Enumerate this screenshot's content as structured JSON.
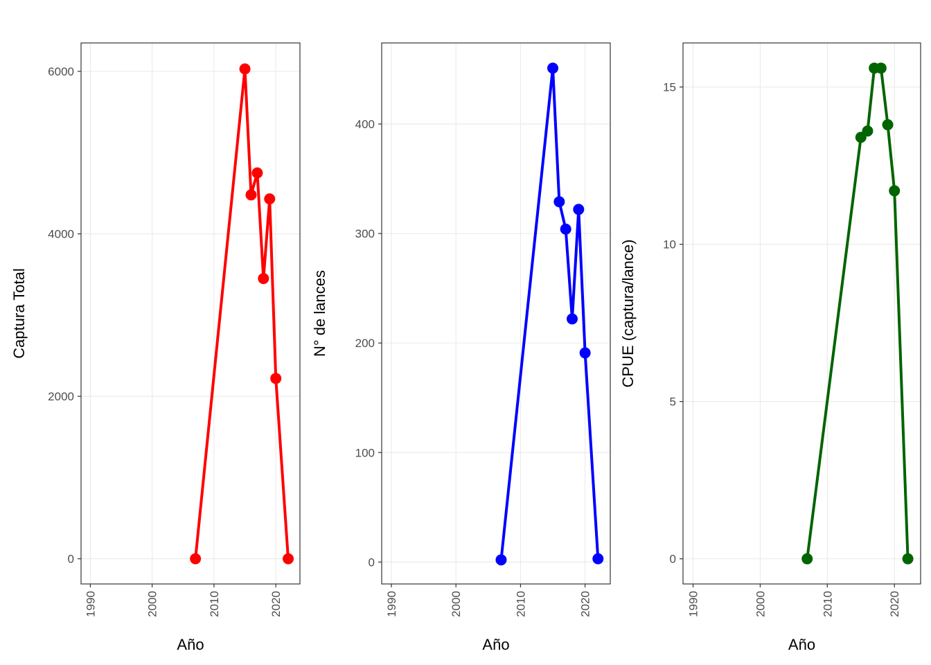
{
  "chart_data": [
    {
      "type": "line",
      "x_label": "Año",
      "y_label": "Captura Total",
      "x": [
        2007,
        2015,
        2016,
        2017,
        2018,
        2019,
        2020,
        2022
      ],
      "series": [
        {
          "color": "#ff0000",
          "values": [
            0,
            6030,
            4480,
            4750,
            3450,
            4430,
            2220,
            0
          ]
        }
      ],
      "xlim": [
        1988.5,
        2023.9
      ],
      "xticks": [
        1990,
        2000,
        2010,
        2020
      ],
      "ylim": [
        -310,
        6350
      ],
      "yticks": [
        0,
        2000,
        4000,
        6000
      ],
      "grid": true
    },
    {
      "type": "line",
      "x_label": "Año",
      "y_label": "N° de lances",
      "x": [
        2007,
        2015,
        2016,
        2017,
        2018,
        2019,
        2020,
        2022
      ],
      "series": [
        {
          "color": "#0000ff",
          "values": [
            2,
            451,
            329,
            304,
            222,
            322,
            191,
            3
          ]
        }
      ],
      "xlim": [
        1988.5,
        2023.9
      ],
      "xticks": [
        1990,
        2000,
        2010,
        2020
      ],
      "ylim": [
        -20,
        474
      ],
      "yticks": [
        0,
        100,
        200,
        300,
        400
      ],
      "grid": true
    },
    {
      "type": "line",
      "x_label": "Año",
      "y_label": "CPUE (captura/lance)",
      "x": [
        2007,
        2015,
        2016,
        2017,
        2018,
        2019,
        2020,
        2022
      ],
      "series": [
        {
          "color": "#006400",
          "values": [
            0,
            13.4,
            13.6,
            15.6,
            15.6,
            13.8,
            11.7,
            0
          ]
        }
      ],
      "xlim": [
        1988.5,
        2023.9
      ],
      "xticks": [
        1990,
        2000,
        2010,
        2020
      ],
      "ylim": [
        -0.8,
        16.4
      ],
      "yticks": [
        0,
        5,
        10,
        15
      ],
      "grid": true
    }
  ]
}
